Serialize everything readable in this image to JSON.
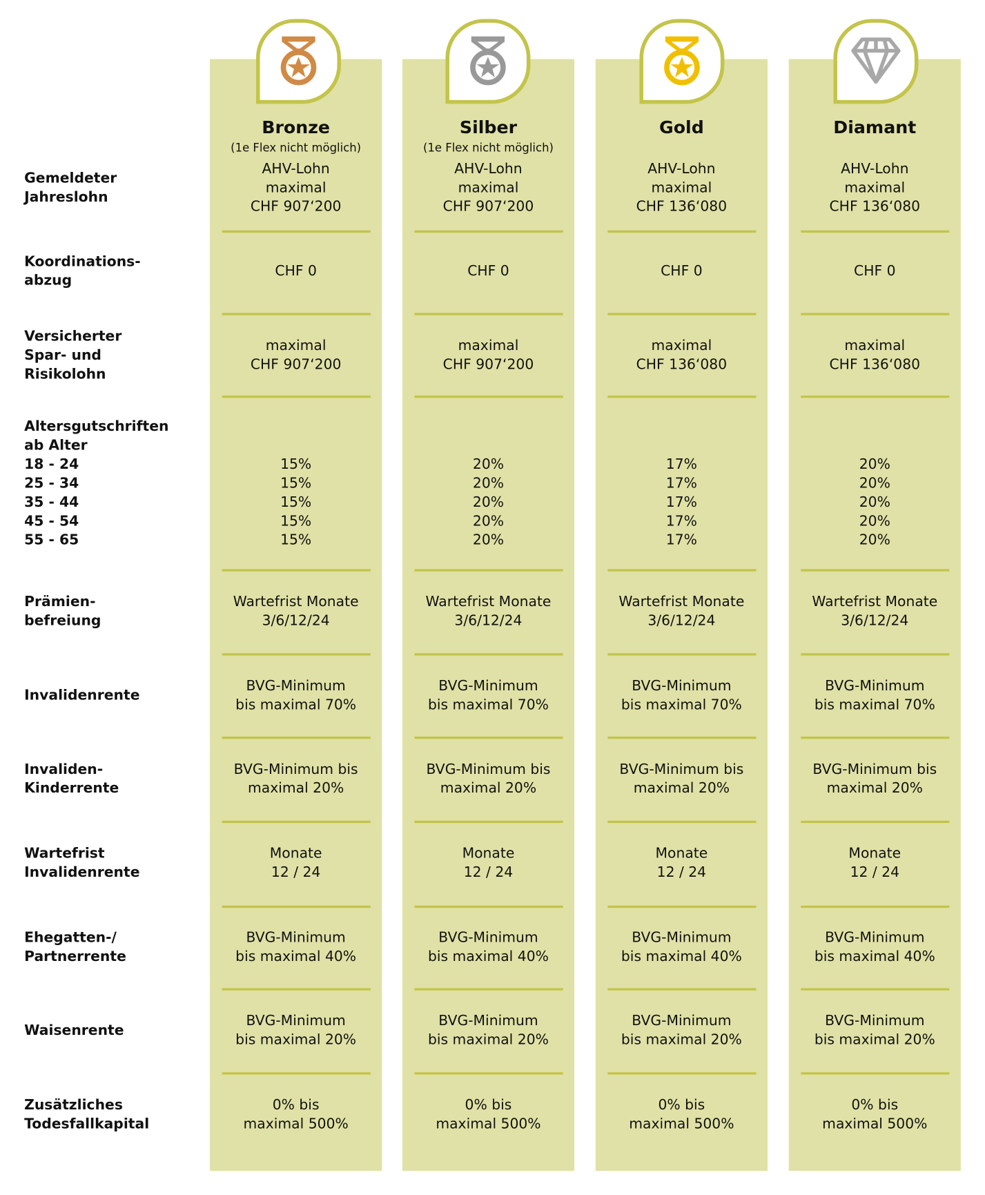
{
  "colors": {
    "column_bg": "#e0e1a6",
    "accent": "#c3c44a",
    "bronze": "#d08a45",
    "silver": "#999999",
    "gold": "#f0c000",
    "diamond": "#a8a8a8"
  },
  "plans": [
    {
      "name": "Bronze",
      "note": "(1e Flex nicht möglich)",
      "icon": "bronze-medal-icon"
    },
    {
      "name": "Silber",
      "note": "(1e Flex nicht möglich)",
      "icon": "silver-medal-icon"
    },
    {
      "name": "Gold",
      "note": "",
      "icon": "gold-medal-icon"
    },
    {
      "name": "Diamant",
      "note": "",
      "icon": "diamond-icon"
    }
  ],
  "rows": [
    {
      "label": [
        "Gemeldeter",
        "Jahreslohn"
      ],
      "values": [
        [
          "AHV-Lohn",
          "maximal",
          "CHF 907‘200"
        ],
        [
          "AHV-Lohn",
          "maximal",
          "CHF 907‘200"
        ],
        [
          "AHV-Lohn",
          "maximal",
          "CHF 136‘080"
        ],
        [
          "AHV-Lohn",
          "maximal",
          "CHF 136‘080"
        ]
      ]
    },
    {
      "label": [
        "Koordinations-",
        "abzug"
      ],
      "values": [
        [
          "CHF 0"
        ],
        [
          "CHF 0"
        ],
        [
          "CHF 0"
        ],
        [
          "CHF 0"
        ]
      ]
    },
    {
      "label": [
        "Versicherter",
        "Spar- und",
        "Risikolohn"
      ],
      "values": [
        [
          "maximal",
          "CHF 907‘200"
        ],
        [
          "maximal",
          "CHF 907‘200"
        ],
        [
          "maximal",
          "CHF 136‘080"
        ],
        [
          "maximal",
          "CHF 136‘080"
        ]
      ]
    },
    {
      "label": [
        "Altersgutschriften",
        "ab Alter",
        "18 - 24",
        "25 - 34",
        "35 - 44",
        "45 - 54",
        "55 - 65"
      ],
      "values": [
        [
          "15%",
          "15%",
          "15%",
          "15%",
          "15%"
        ],
        [
          "20%",
          "20%",
          "20%",
          "20%",
          "20%"
        ],
        [
          "17%",
          "17%",
          "17%",
          "17%",
          "17%"
        ],
        [
          "20%",
          "20%",
          "20%",
          "20%",
          "20%"
        ]
      ]
    },
    {
      "label": [
        "Prämien-",
        "befreiung"
      ],
      "values": [
        [
          "Wartefrist Monate",
          "3/6/12/24"
        ],
        [
          "Wartefrist Monate",
          "3/6/12/24"
        ],
        [
          "Wartefrist Monate",
          "3/6/12/24"
        ],
        [
          "Wartefrist Monate",
          "3/6/12/24"
        ]
      ]
    },
    {
      "label": [
        "Invalidenrente"
      ],
      "values": [
        [
          "BVG-Minimum",
          "bis maximal 70%"
        ],
        [
          "BVG-Minimum",
          "bis maximal 70%"
        ],
        [
          "BVG-Minimum",
          "bis maximal 70%"
        ],
        [
          "BVG-Minimum",
          "bis maximal 70%"
        ]
      ]
    },
    {
      "label": [
        "Invaliden-",
        "Kinderrente"
      ],
      "values": [
        [
          "BVG-Minimum bis",
          "maximal 20%"
        ],
        [
          "BVG-Minimum bis",
          "maximal 20%"
        ],
        [
          "BVG-Minimum bis",
          "maximal 20%"
        ],
        [
          "BVG-Minimum bis",
          "maximal 20%"
        ]
      ]
    },
    {
      "label": [
        "Wartefrist",
        "Invalidenrente"
      ],
      "values": [
        [
          "Monate",
          "12 / 24"
        ],
        [
          "Monate",
          "12 / 24"
        ],
        [
          "Monate",
          "12 / 24"
        ],
        [
          "Monate",
          "12 / 24"
        ]
      ]
    },
    {
      "label": [
        "Ehegatten-/",
        "Partnerrente"
      ],
      "values": [
        [
          "BVG-Minimum",
          "bis maximal 40%"
        ],
        [
          "BVG-Minimum",
          "bis maximal 40%"
        ],
        [
          "BVG-Minimum",
          "bis maximal 40%"
        ],
        [
          "BVG-Minimum",
          "bis maximal 40%"
        ]
      ]
    },
    {
      "label": [
        "Waisenrente"
      ],
      "values": [
        [
          "BVG-Minimum",
          "bis maximal 20%"
        ],
        [
          "BVG-Minimum",
          "bis maximal 20%"
        ],
        [
          "BVG-Minimum",
          "bis maximal 20%"
        ],
        [
          "BVG-Minimum",
          "bis maximal 20%"
        ]
      ]
    },
    {
      "label": [
        "Zusätzliches",
        "Todesfallkapital"
      ],
      "values": [
        [
          "0% bis",
          "maximal 500%"
        ],
        [
          "0% bis",
          "maximal 500%"
        ],
        [
          "0% bis",
          "maximal 500%"
        ],
        [
          "0% bis",
          "maximal 500%"
        ]
      ]
    }
  ]
}
